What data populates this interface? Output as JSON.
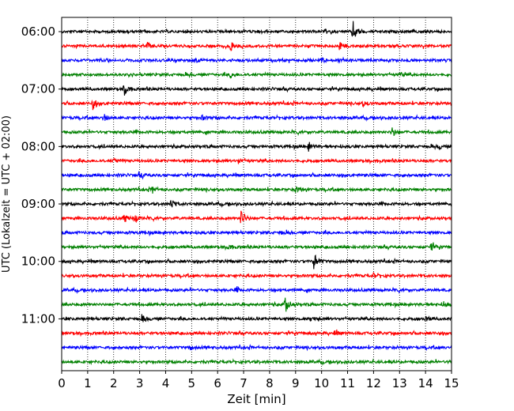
{
  "chart_data": {
    "type": "line",
    "chart_kind": "helicorder",
    "xlabel": "Zeit  [min]",
    "ylabel": "UTC (Lokalzeit = UTC + 02:00)",
    "xlim": [
      0,
      15
    ],
    "x_ticks": [
      0,
      1,
      2,
      3,
      4,
      5,
      6,
      7,
      8,
      9,
      10,
      11,
      12,
      13,
      14,
      15
    ],
    "x_tick_labels": [
      "0",
      "1",
      "2",
      "3",
      "4",
      "5",
      "6",
      "7",
      "8",
      "9",
      "10",
      "11",
      "12",
      "13",
      "14",
      "15"
    ],
    "y_tick_labels": [
      "06:00",
      "07:00",
      "08:00",
      "09:00",
      "10:00",
      "11:00"
    ],
    "y_tick_rows": [
      0,
      4,
      8,
      12,
      16,
      20
    ],
    "row_minutes": 15,
    "vertical_grid": "dotted at every minute",
    "trace_colors": [
      "#000000",
      "#ff0000",
      "#0000ff",
      "#008000"
    ],
    "rows": [
      {
        "events": [
          [
            11.2,
            1.0
          ]
        ]
      },
      {
        "events": [
          [
            6.5,
            0.35
          ],
          [
            10.7,
            0.45
          ],
          [
            3.3,
            0.25
          ]
        ]
      },
      {
        "events": [
          [
            5.1,
            0.2
          ],
          [
            10.0,
            0.2
          ]
        ]
      },
      {
        "events": [
          [
            6.5,
            0.25
          ],
          [
            13.0,
            0.2
          ]
        ]
      },
      {
        "events": [
          [
            2.4,
            0.55
          ]
        ]
      },
      {
        "events": [
          [
            1.2,
            0.5
          ],
          [
            11.6,
            0.2
          ]
        ]
      },
      {
        "events": [
          [
            1.6,
            0.35
          ],
          [
            5.4,
            0.2
          ]
        ]
      },
      {
        "events": [
          [
            12.7,
            0.45
          ]
        ]
      },
      {
        "events": [
          [
            9.5,
            0.4
          ],
          [
            14.5,
            0.2
          ]
        ]
      },
      {
        "events": [
          [
            2.0,
            0.2
          ],
          [
            6.8,
            0.2
          ]
        ]
      },
      {
        "events": [
          [
            3.0,
            0.2
          ]
        ]
      },
      {
        "events": [
          [
            3.5,
            0.3
          ],
          [
            9.0,
            0.3
          ]
        ]
      },
      {
        "events": [
          [
            4.2,
            0.45
          ]
        ]
      },
      {
        "events": [
          [
            2.4,
            0.4
          ],
          [
            2.8,
            0.35
          ],
          [
            6.9,
            0.85
          ]
        ]
      },
      {
        "events": [
          [
            8.4,
            0.15
          ]
        ]
      },
      {
        "events": [
          [
            14.2,
            0.4
          ],
          [
            6.4,
            0.2
          ]
        ]
      },
      {
        "events": [
          [
            9.7,
            0.75
          ]
        ]
      },
      {
        "events": [
          [
            12.0,
            0.2
          ]
        ]
      },
      {
        "events": [
          [
            6.7,
            0.2
          ]
        ]
      },
      {
        "events": [
          [
            8.6,
            0.75
          ],
          [
            14.7,
            0.25
          ]
        ]
      },
      {
        "events": [
          [
            3.1,
            0.3
          ],
          [
            9.6,
            0.2
          ],
          [
            14.0,
            0.2
          ]
        ]
      },
      {
        "events": [
          [
            10.5,
            0.2
          ]
        ]
      },
      {
        "events": [
          [
            4.9,
            0.2
          ]
        ]
      },
      {
        "events": [
          [
            14.9,
            0.2
          ]
        ]
      }
    ]
  }
}
